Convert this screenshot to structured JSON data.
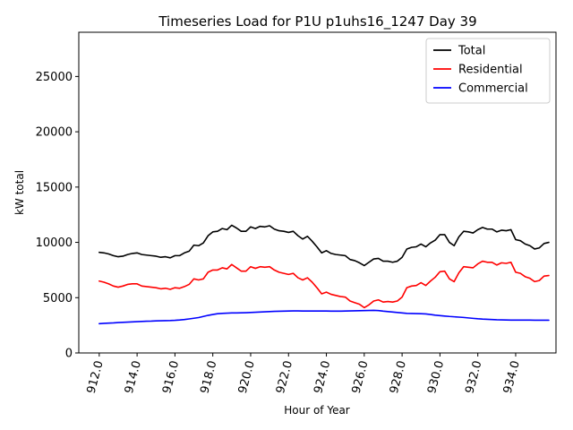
{
  "chart_data": {
    "type": "line",
    "title": "Timeseries Load for P1U p1uhs16_1247  Day 39",
    "xlabel": "Hour of Year",
    "ylabel": "kW total",
    "xlim": [
      910.92,
      936.13
    ],
    "ylim": [
      0,
      29000
    ],
    "x_ticks": [
      912,
      914,
      916,
      918,
      920,
      922,
      924,
      926,
      928,
      930,
      932,
      934
    ],
    "x_tick_labels": [
      "912.0",
      "914.0",
      "916.0",
      "918.0",
      "920.0",
      "922.0",
      "924.0",
      "926.0",
      "928.0",
      "930.0",
      "932.0",
      "934.0"
    ],
    "y_ticks": [
      0,
      5000,
      10000,
      15000,
      20000,
      25000
    ],
    "y_tick_labels": [
      "0",
      "5000",
      "10000",
      "15000",
      "20000",
      "25000"
    ],
    "legend_position": "top-right",
    "x_start": 912,
    "x_step": 0.25,
    "series": [
      {
        "name": "Total",
        "color": "#000000",
        "values": [
          9100,
          9050,
          8950,
          8800,
          8700,
          8750,
          8900,
          9000,
          9050,
          8900,
          8850,
          8800,
          8750,
          8650,
          8700,
          8600,
          8800,
          8800,
          9050,
          9200,
          9750,
          9700,
          9950,
          10600,
          10950,
          11000,
          11250,
          11150,
          11550,
          11300,
          11000,
          11000,
          11400,
          11250,
          11450,
          11400,
          11500,
          11200,
          11050,
          11000,
          10900,
          11000,
          10600,
          10300,
          10550,
          10100,
          9600,
          9050,
          9250,
          9000,
          8900,
          8850,
          8800,
          8450,
          8350,
          8150,
          7900,
          8200,
          8500,
          8550,
          8300,
          8300,
          8200,
          8300,
          8650,
          9400,
          9550,
          9600,
          9850,
          9600,
          9950,
          10200,
          10700,
          10700,
          10000,
          9700,
          10500,
          11000,
          10950,
          10850,
          11150,
          11350,
          11200,
          11200,
          10950,
          11100,
          11050,
          11150,
          10250,
          10150,
          9850,
          9700,
          9400,
          9500,
          9900,
          10000
        ]
      },
      {
        "name": "Residential",
        "color": "#ff0000",
        "values": [
          6500,
          6400,
          6250,
          6050,
          5950,
          6050,
          6200,
          6250,
          6250,
          6050,
          6000,
          5950,
          5900,
          5800,
          5850,
          5750,
          5900,
          5850,
          6000,
          6200,
          6700,
          6600,
          6700,
          7300,
          7500,
          7500,
          7700,
          7600,
          8000,
          7700,
          7400,
          7400,
          7800,
          7650,
          7800,
          7750,
          7800,
          7500,
          7300,
          7200,
          7100,
          7200,
          6800,
          6600,
          6800,
          6400,
          5900,
          5350,
          5500,
          5300,
          5200,
          5100,
          5050,
          4700,
          4550,
          4400,
          4100,
          4350,
          4700,
          4800,
          4600,
          4650,
          4600,
          4700,
          5050,
          5900,
          6050,
          6100,
          6350,
          6100,
          6500,
          6850,
          7350,
          7400,
          6700,
          6450,
          7250,
          7800,
          7750,
          7700,
          8050,
          8300,
          8200,
          8200,
          7950,
          8150,
          8100,
          8200,
          7300,
          7200,
          6900,
          6750,
          6450,
          6550,
          6950,
          7000
        ]
      },
      {
        "name": "Commercial",
        "color": "#0000ff",
        "values": [
          2650,
          2680,
          2700,
          2720,
          2750,
          2770,
          2790,
          2810,
          2830,
          2850,
          2870,
          2880,
          2900,
          2910,
          2920,
          2930,
          2950,
          2980,
          3020,
          3080,
          3140,
          3200,
          3300,
          3400,
          3480,
          3550,
          3580,
          3600,
          3620,
          3620,
          3630,
          3640,
          3660,
          3680,
          3700,
          3720,
          3740,
          3760,
          3770,
          3780,
          3790,
          3800,
          3800,
          3790,
          3790,
          3790,
          3790,
          3790,
          3790,
          3780,
          3780,
          3780,
          3790,
          3800,
          3810,
          3820,
          3830,
          3840,
          3850,
          3830,
          3780,
          3740,
          3700,
          3660,
          3620,
          3580,
          3570,
          3560,
          3550,
          3530,
          3480,
          3420,
          3380,
          3340,
          3300,
          3270,
          3240,
          3210,
          3170,
          3130,
          3090,
          3060,
          3040,
          3020,
          3000,
          2990,
          2980,
          2970,
          2970,
          2970,
          2970,
          2970,
          2960,
          2960,
          2960,
          2960
        ]
      }
    ]
  }
}
